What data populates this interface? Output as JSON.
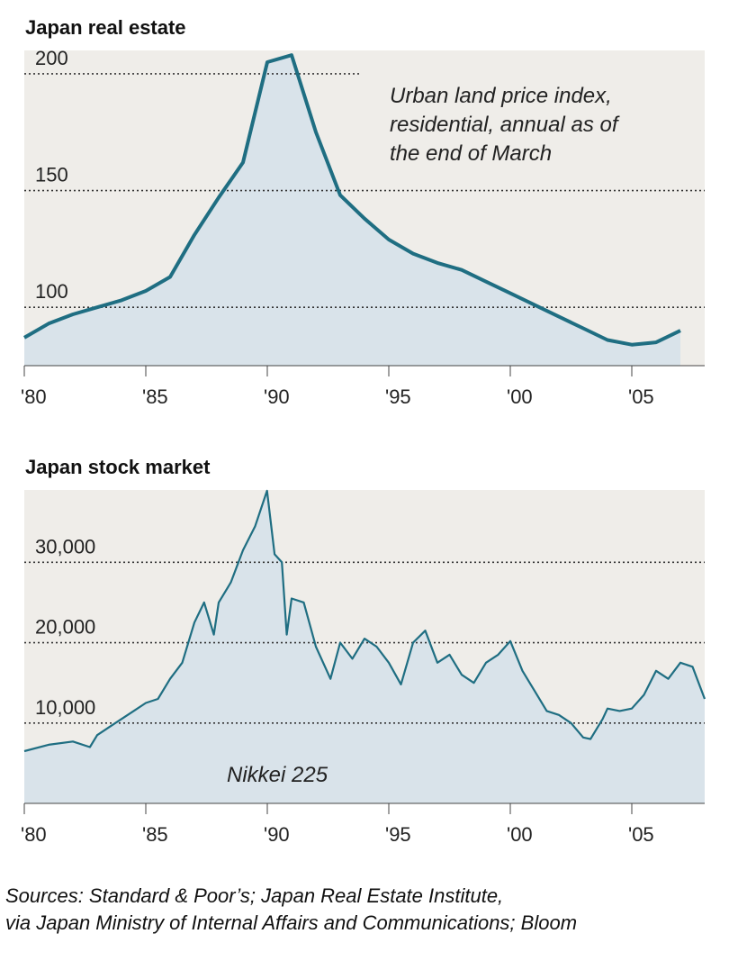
{
  "chart_data": [
    {
      "type": "area",
      "title": "Japan real estate",
      "annotation": "Urban land price index, residential, annual as of the end of March",
      "annotation_lines": [
        "Urban land price index,",
        "residential, annual as of",
        "the end of March"
      ],
      "xlim": [
        1980,
        2008
      ],
      "ylim": [
        75,
        210
      ],
      "y_ticks": [
        100,
        150,
        200
      ],
      "y_tick_labels": [
        "100",
        "150",
        "200"
      ],
      "x_ticks": [
        1980,
        1985,
        1990,
        1995,
        2000,
        2005
      ],
      "x_tick_labels": [
        "'80",
        "'85",
        "'90",
        "'95",
        "'00",
        "'05"
      ],
      "grid": "horizontal dotted",
      "x": [
        1980,
        1981,
        1982,
        1983,
        1984,
        1985,
        1986,
        1987,
        1988,
        1989,
        1990,
        1991,
        1992,
        1993,
        1994,
        1995,
        1996,
        1997,
        1998,
        1999,
        2000,
        2001,
        2002,
        2003,
        2004,
        2005,
        2006,
        2007
      ],
      "values": [
        87,
        93,
        97,
        100,
        103,
        107,
        113,
        131,
        147,
        162,
        205,
        208,
        175,
        148,
        138,
        129,
        123,
        119,
        116,
        111,
        106,
        101,
        96,
        91,
        86,
        84,
        85,
        90
      ],
      "line_color": "#1f6e82",
      "fill_color": "#d9e3ea",
      "plot_bg": "#efede9"
    },
    {
      "type": "area",
      "title": "Japan stock market",
      "annotation": "Nikkei 225",
      "xlim": [
        1980,
        2008
      ],
      "ylim": [
        0,
        39000
      ],
      "y_ticks": [
        10000,
        20000,
        30000
      ],
      "y_tick_labels": [
        "10,000",
        "20,000",
        "30,000"
      ],
      "x_ticks": [
        1980,
        1985,
        1990,
        1995,
        2000,
        2005
      ],
      "x_tick_labels": [
        "'80",
        "'85",
        "'90",
        "'95",
        "'00",
        "'05"
      ],
      "grid": "horizontal dotted",
      "x": [
        1980,
        1981,
        1982,
        1982.7,
        1983,
        1983.5,
        1984,
        1984.5,
        1985,
        1985.5,
        1986,
        1986.5,
        1987,
        1987.4,
        1987.8,
        1988,
        1988.5,
        1989,
        1989.5,
        1989.99,
        1990.3,
        1990.6,
        1990.8,
        1991,
        1991.5,
        1992,
        1992.6,
        1993,
        1993.5,
        1994,
        1994.5,
        1995,
        1995.5,
        1996,
        1996.5,
        1997,
        1997.5,
        1998,
        1998.5,
        1999,
        1999.5,
        2000,
        2000.5,
        2001,
        2001.5,
        2002,
        2002.5,
        2003,
        2003.3,
        2003.8,
        2004,
        2004.5,
        2005,
        2005.5,
        2006,
        2006.5,
        2007,
        2007.5,
        2008
      ],
      "values": [
        6500,
        7300,
        7700,
        7000,
        8500,
        9500,
        10500,
        11500,
        12500,
        13000,
        15500,
        17500,
        22500,
        25000,
        21000,
        25000,
        27500,
        31500,
        34500,
        38900,
        31000,
        30000,
        21000,
        25500,
        25000,
        19500,
        15500,
        20000,
        18000,
        20500,
        19500,
        17500,
        14800,
        20000,
        21500,
        17500,
        18500,
        16000,
        15000,
        17500,
        18500,
        20200,
        16500,
        14000,
        11500,
        11000,
        10000,
        8200,
        8000,
        10500,
        11800,
        11500,
        11800,
        13500,
        16500,
        15500,
        17500,
        17000,
        13000
      ],
      "line_color": "#1f6e82",
      "fill_color": "#d9e3ea",
      "plot_bg": "#efede9"
    }
  ],
  "sources": {
    "line1": "Sources: Standard & Poor’s; Japan Real Estate Institute,",
    "line2": "via Japan Ministry of Internal Affairs and Communications; Bloom"
  }
}
